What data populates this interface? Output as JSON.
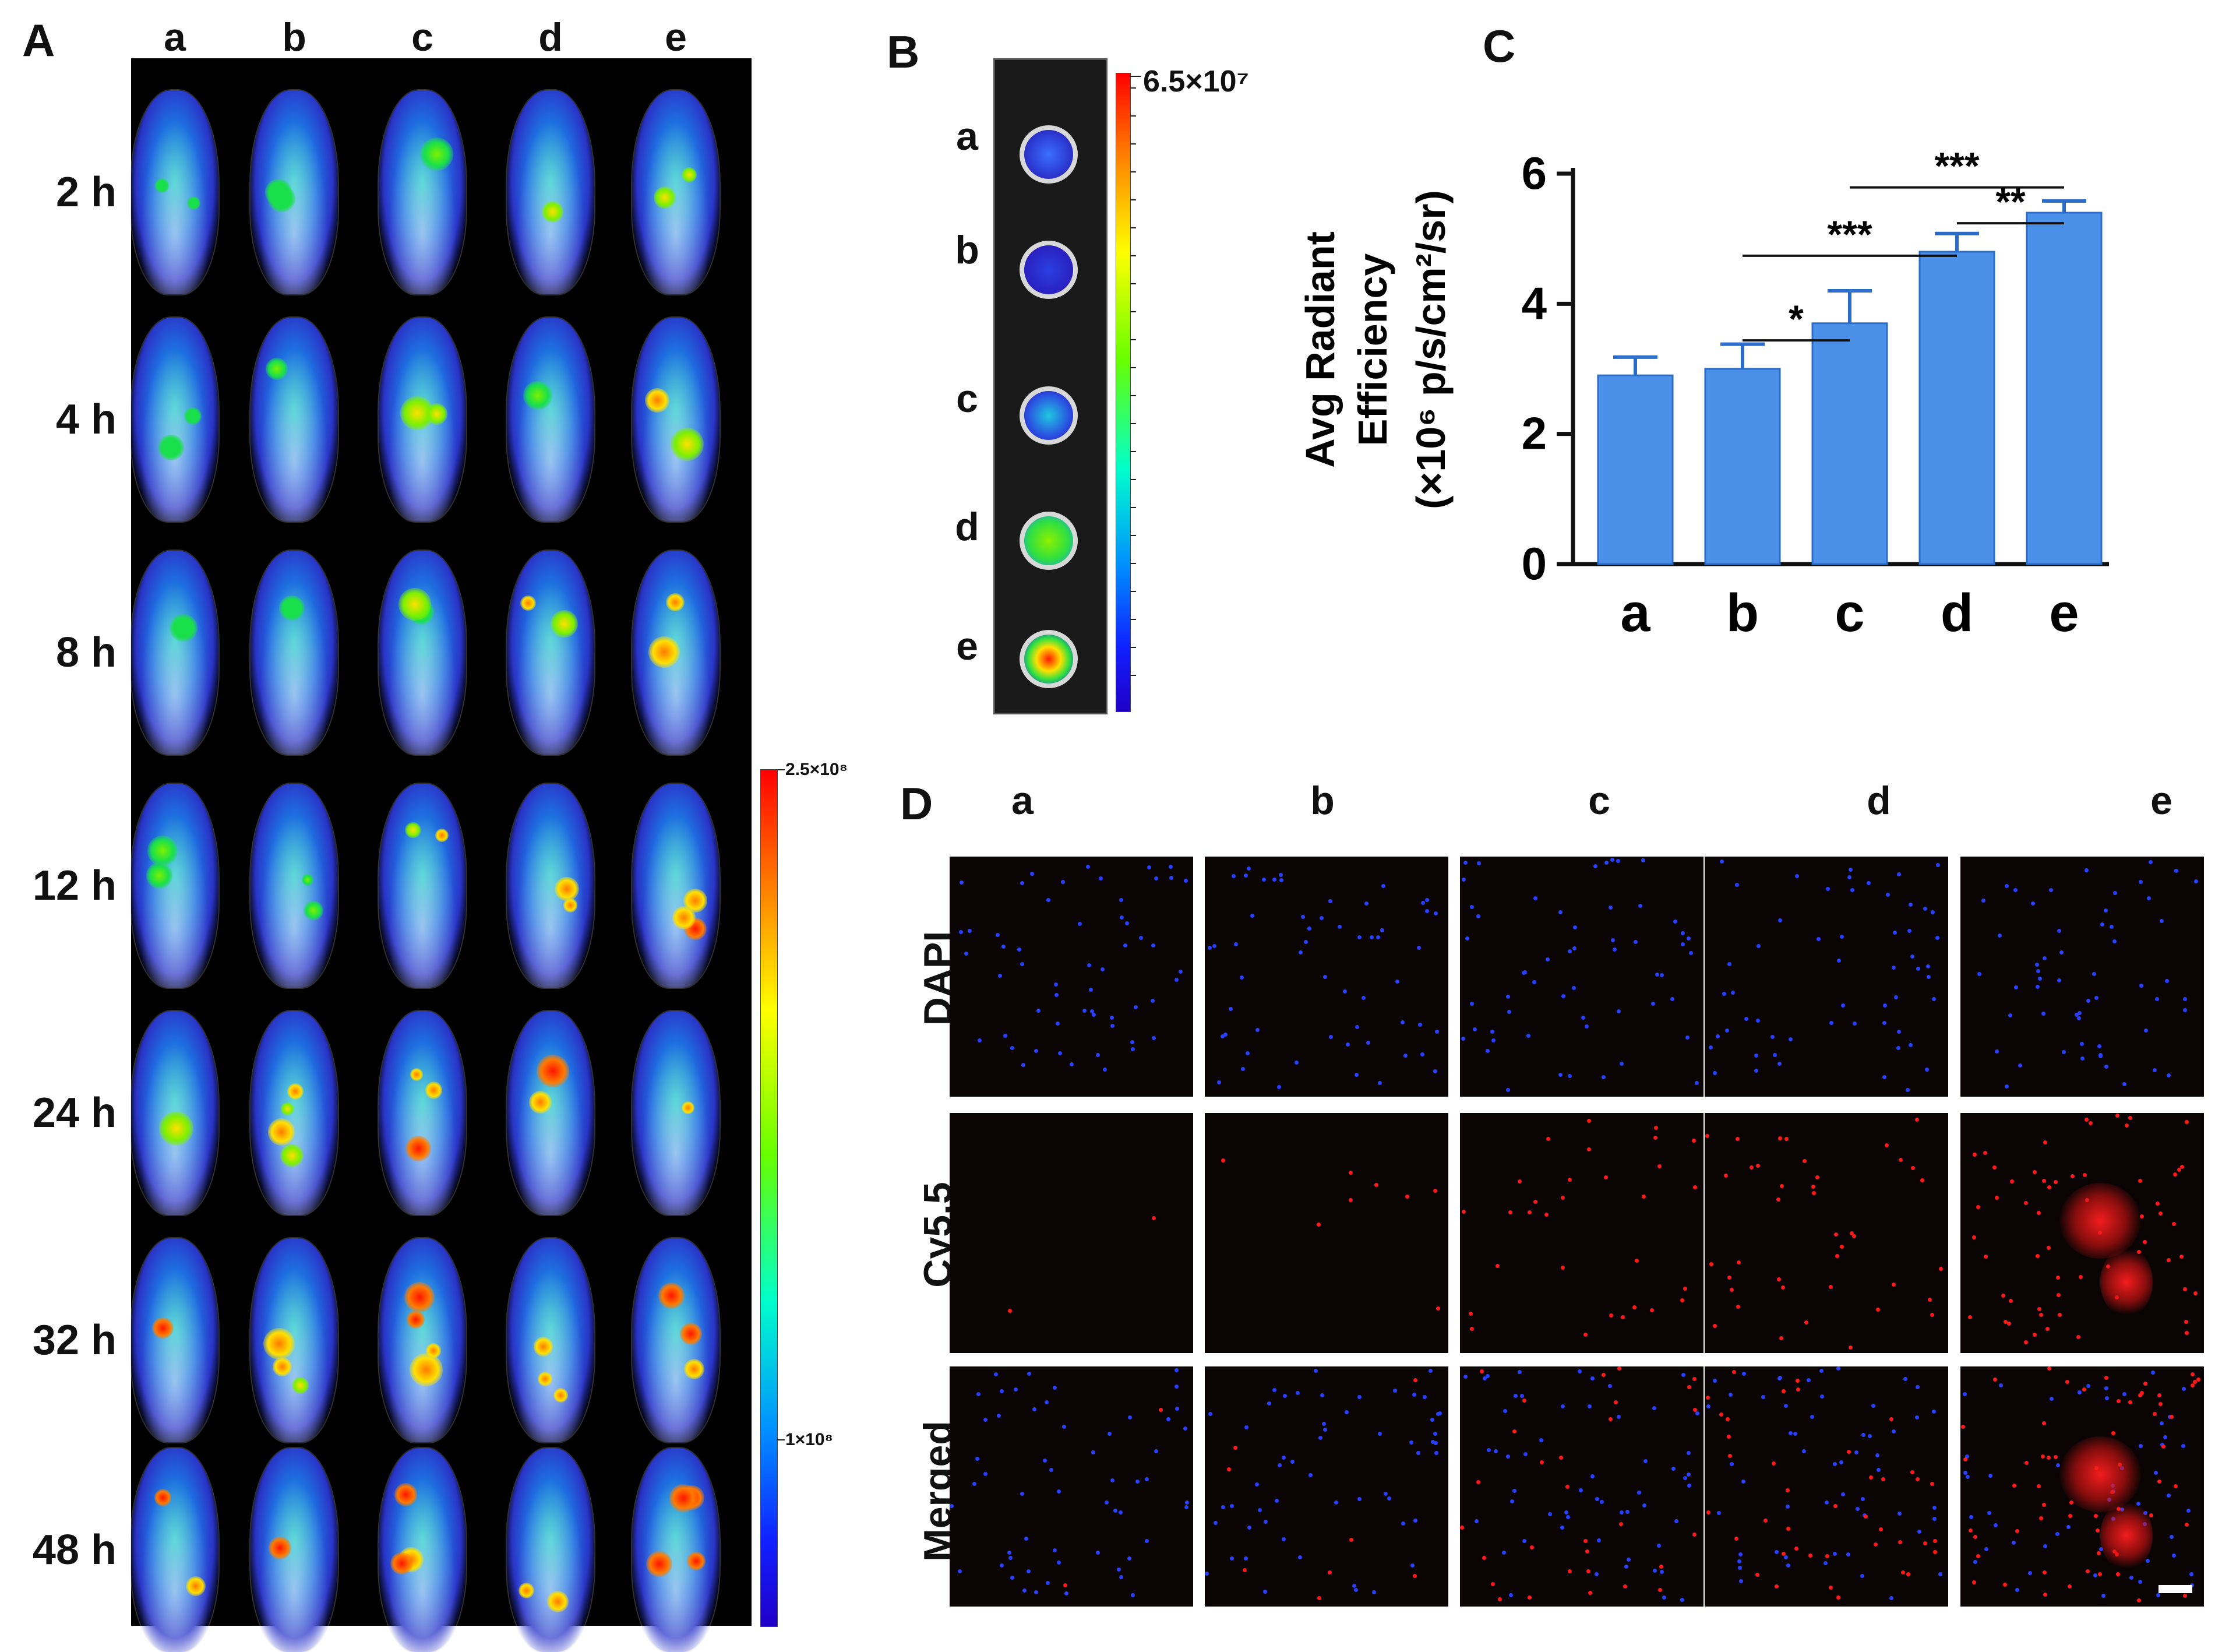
{
  "panel_labels": {
    "A": "A",
    "B": "B",
    "C": "C",
    "D": "D"
  },
  "panelA": {
    "columns": [
      "a",
      "b",
      "c",
      "d",
      "e"
    ],
    "timepoints": [
      "2 h",
      "4 h",
      "8 h",
      "12 h",
      "24 h",
      "32 h",
      "48 h"
    ],
    "scale_max": "2.5×10⁸",
    "scale_mid": "1×10⁸"
  },
  "panelB": {
    "rows": [
      "a",
      "b",
      "c",
      "d",
      "e"
    ],
    "scale_max": "6.5×10⁷"
  },
  "chart_data": {
    "type": "bar",
    "categories": [
      "a",
      "b",
      "c",
      "d",
      "e"
    ],
    "values": [
      2.9,
      3.0,
      3.7,
      4.8,
      5.4
    ],
    "errors": [
      0.28,
      0.38,
      0.5,
      0.28,
      0.18
    ],
    "ylabel_line1": "Avg Radiant",
    "ylabel_line2": "Efficiency",
    "ylabel_line3": "(×10⁶ p/s/cm²/sr)",
    "ylim": [
      0,
      6
    ],
    "yticks": [
      0,
      2,
      4,
      6
    ],
    "bar_color": "#4a90e8",
    "significance": [
      {
        "from": "b",
        "to": "c",
        "label": "*"
      },
      {
        "from": "b",
        "to": "d",
        "label": "***"
      },
      {
        "from": "c",
        "to": "e",
        "label": "***"
      },
      {
        "from": "d",
        "to": "e",
        "label": "**"
      }
    ]
  },
  "panelD": {
    "columns": [
      "a",
      "b",
      "c",
      "d",
      "e"
    ],
    "rows": [
      "DAPI",
      "Cy5.5",
      "Merged"
    ]
  }
}
